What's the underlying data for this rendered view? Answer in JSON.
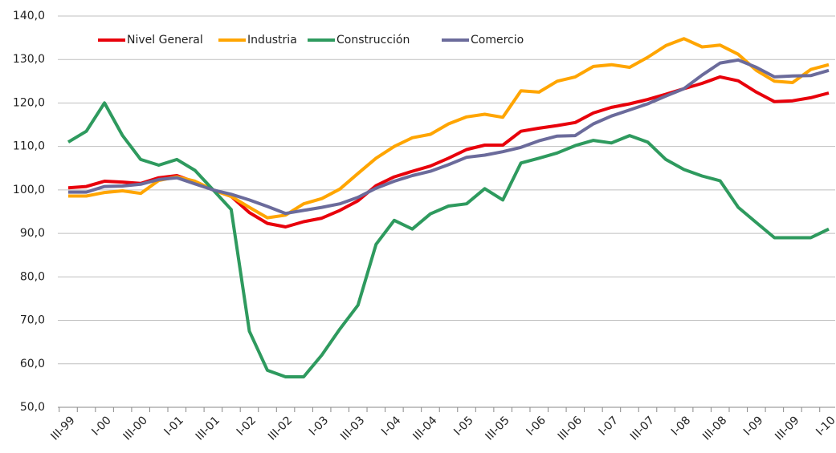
{
  "chart_data": {
    "type": "line",
    "categories": [
      "III-99",
      null,
      "I-00",
      null,
      "III-00",
      null,
      "I-01",
      null,
      "III-01",
      null,
      "I-02",
      null,
      "III-02",
      null,
      "I-03",
      null,
      "III-03",
      null,
      "I-04",
      null,
      "III-04",
      null,
      "I-05",
      null,
      "III-05",
      null,
      "I-06",
      null,
      "III-06",
      null,
      "I-07",
      null,
      "III-07",
      null,
      "I-08",
      null,
      "III-08",
      null,
      "I-09",
      null,
      "III-09",
      null,
      "I-10"
    ],
    "series": [
      {
        "name": "Nivel General",
        "color": "#e8000b",
        "values": [
          100.5,
          100.8,
          102,
          101.8,
          101.5,
          102.8,
          103.3,
          101.8,
          100,
          98.5,
          94.8,
          92.3,
          91.5,
          92.7,
          93.5,
          95.3,
          97.5,
          101,
          103,
          104.3,
          105.5,
          107.3,
          109.3,
          110.3,
          110.3,
          113.5,
          114.2,
          114.8,
          115.5,
          117.7,
          119,
          119.8,
          120.8,
          122,
          123.3,
          124.5,
          126,
          125.1,
          122.5,
          120.3,
          120.5,
          121.2,
          122.3
        ]
      },
      {
        "name": "Industria",
        "color": "#ffa500",
        "values": [
          98.6,
          98.6,
          99.4,
          99.8,
          99.2,
          102.2,
          103,
          102,
          100,
          98.5,
          96,
          93.6,
          94.2,
          96.8,
          98,
          100.2,
          103.8,
          107.3,
          110,
          112,
          112.8,
          115.2,
          116.8,
          117.4,
          116.7,
          122.8,
          122.5,
          125,
          126,
          128.4,
          128.8,
          128.2,
          130.5,
          133.2,
          134.8,
          132.9,
          133.3,
          131.2,
          127.5,
          125,
          124.7,
          127.7,
          128.8
        ]
      },
      {
        "name": "Construcción",
        "color": "#2e9a5e",
        "values": [
          111,
          113.5,
          120,
          112.5,
          107,
          105.7,
          107,
          104.5,
          100,
          95.5,
          67.5,
          58.5,
          57,
          57,
          62,
          68,
          73.5,
          87.5,
          93,
          91,
          94.5,
          96.3,
          96.8,
          100.3,
          97.7,
          106.2,
          107.3,
          108.5,
          110.2,
          111.4,
          110.8,
          112.5,
          111,
          107,
          104.7,
          103.2,
          102.1,
          96,
          92.5,
          89,
          89,
          89,
          91
        ]
      },
      {
        "name": "Comercio",
        "color": "#6b6b9b",
        "values": [
          99.5,
          99.5,
          100.8,
          100.9,
          101.3,
          102.4,
          102.8,
          101.4,
          100,
          99,
          97.7,
          96.2,
          94.6,
          95.3,
          96,
          96.8,
          98.3,
          100.4,
          102,
          103.3,
          104.3,
          105.8,
          107.5,
          108,
          108.8,
          109.8,
          111.3,
          112.4,
          112.5,
          115.2,
          117,
          118.4,
          119.8,
          121.6,
          123.3,
          126.4,
          129.2,
          129.9,
          128.2,
          126,
          126.2,
          126.3,
          127.5
        ]
      }
    ],
    "ylim": [
      50,
      140
    ],
    "yticks": [
      {
        "value": 50,
        "label": "50,0"
      },
      {
        "value": 60,
        "label": "60,0"
      },
      {
        "value": 70,
        "label": "70,0"
      },
      {
        "value": 80,
        "label": "80,0"
      },
      {
        "value": 90,
        "label": "90,0"
      },
      {
        "value": 100,
        "label": "100,0"
      },
      {
        "value": 110,
        "label": "110,0"
      },
      {
        "value": 120,
        "label": "120,0"
      },
      {
        "value": 130,
        "label": "130,0"
      },
      {
        "value": 140,
        "label": "140,0"
      }
    ],
    "grid": true,
    "legend": "top-left"
  }
}
